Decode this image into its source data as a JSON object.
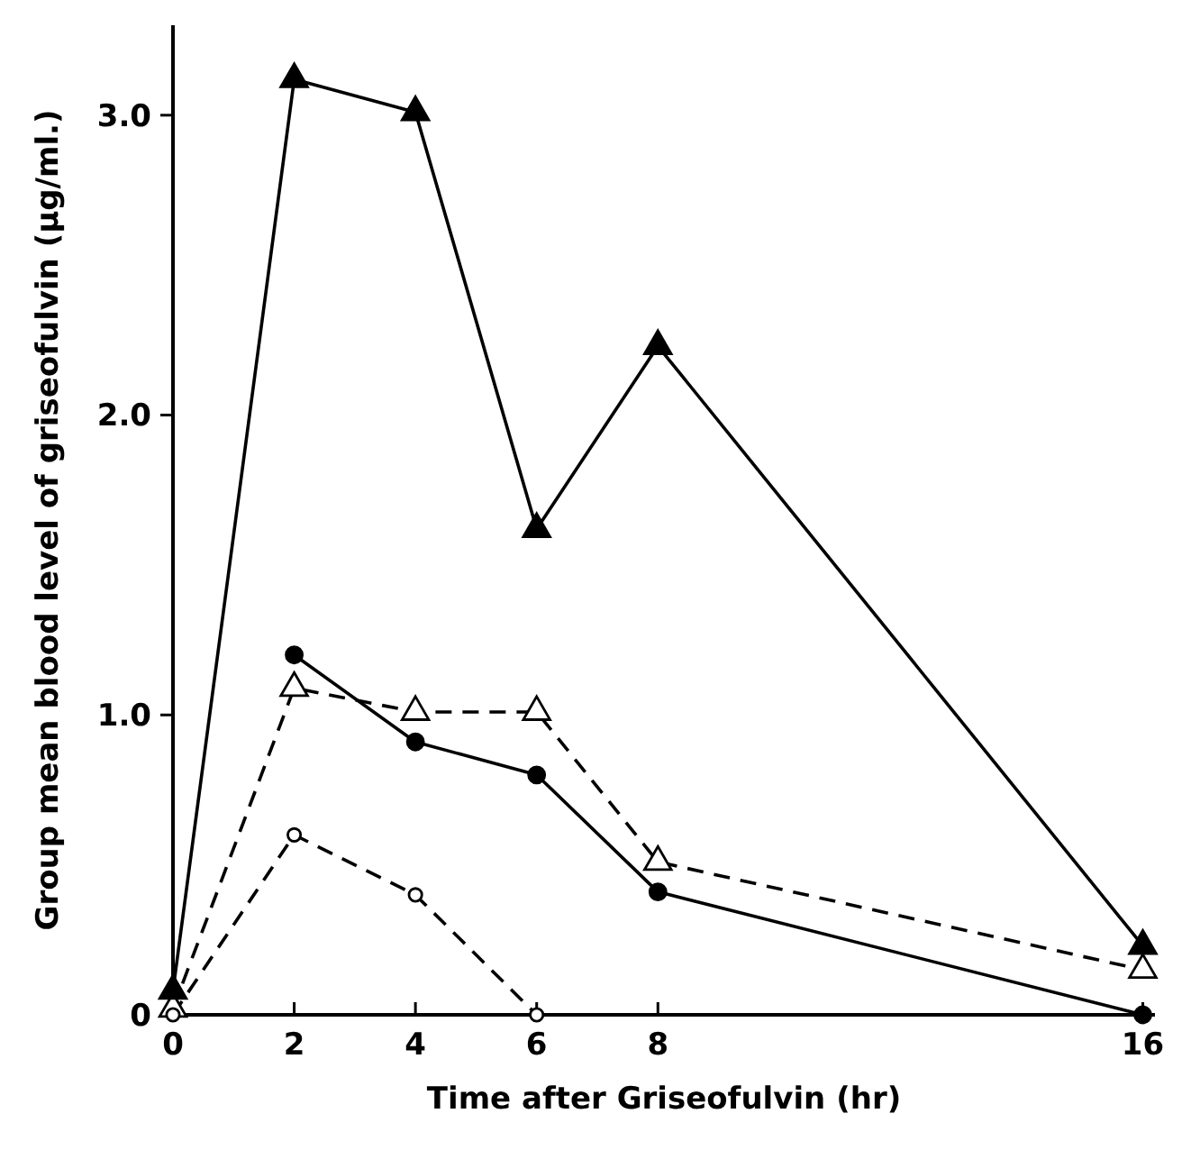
{
  "chart_data": {
    "type": "line",
    "xlabel": "Time after Griseofulvin (hr)",
    "ylabel": "Group mean blood level of griseofulvin (μg/ml.)",
    "xlim": [
      0,
      16.2
    ],
    "xticks": [
      0,
      2,
      4,
      6,
      8,
      16
    ],
    "ylim": [
      0,
      3.3
    ],
    "yticks": [
      0,
      {
        "value": 1,
        "label": "1.0"
      },
      {
        "value": 2,
        "label": "2.0"
      },
      {
        "value": 3,
        "label": "3.0"
      }
    ],
    "grid": false,
    "x": [
      0,
      2,
      4,
      6,
      8,
      16
    ],
    "series": [
      {
        "color": "#000000",
        "marker": "triangle",
        "line_style": "solid",
        "values": [
          0.08,
          3.12,
          3.01,
          1.62,
          2.23,
          0.23
        ]
      },
      {
        "color": "#000000",
        "marker": "circle",
        "line_style": "solid",
        "values": [
          null,
          1.2,
          0.91,
          0.8,
          0.41,
          0
        ]
      },
      {
        "color": "#000000",
        "marker": "triangle",
        "line_style": "dashed",
        "values": [
          0.02,
          1.09,
          1.01,
          1.01,
          0.51,
          0.15
        ]
      },
      {
        "color": "#000000",
        "marker": "circle",
        "line_style": "dashed",
        "values": [
          0,
          0.6,
          0.4,
          0,
          null,
          null
        ]
      }
    ]
  }
}
